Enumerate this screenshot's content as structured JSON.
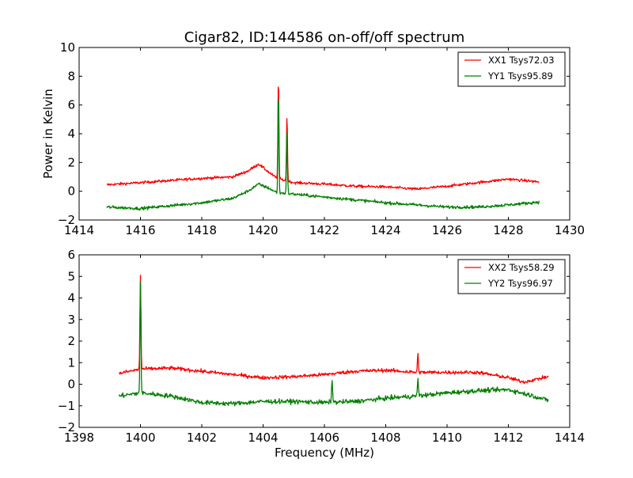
{
  "figure_title": "Cigar82, ID:144586 on-off/off spectrum",
  "chart_data": [
    {
      "type": "line",
      "title": "Cigar82, ID:144586 on-off/off spectrum",
      "xlabel": "",
      "ylabel": "Power in Kelvin",
      "xlim": [
        1414,
        1430
      ],
      "ylim": [
        -2,
        10
      ],
      "xticks": [
        "1414",
        "1416",
        "1418",
        "1420",
        "1422",
        "1424",
        "1426",
        "1428",
        "1430"
      ],
      "yticks": [
        "−2",
        "0",
        "2",
        "4",
        "6",
        "8",
        "10"
      ],
      "xtick_values": [
        1414,
        1416,
        1418,
        1420,
        1422,
        1424,
        1426,
        1428,
        1430
      ],
      "ytick_values": [
        -2,
        0,
        2,
        4,
        6,
        8,
        10
      ],
      "grid": false,
      "legend_position": "top-right",
      "x_range": [
        1414.9,
        1429.0
      ],
      "series": [
        {
          "name": "XX1 Tsys72.03",
          "color": "#ff0000",
          "baseline": [
            [
              1414.9,
              0.45
            ],
            [
              1416,
              0.6
            ],
            [
              1417,
              0.75
            ],
            [
              1418,
              0.9
            ],
            [
              1419,
              1.0
            ],
            [
              1419.5,
              1.4
            ],
            [
              1419.85,
              1.9
            ],
            [
              1420.2,
              1.3
            ],
            [
              1420.45,
              0.9
            ],
            [
              1421,
              0.6
            ],
            [
              1422,
              0.5
            ],
            [
              1423,
              0.35
            ],
            [
              1424,
              0.3
            ],
            [
              1425,
              0.15
            ],
            [
              1426,
              0.35
            ],
            [
              1427,
              0.6
            ],
            [
              1428,
              0.85
            ],
            [
              1429.0,
              0.65
            ]
          ],
          "peaks": [
            {
              "x": 1420.5,
              "y": 8.0
            },
            {
              "x": 1420.78,
              "y": 5.3
            }
          ],
          "noise": 0.09
        },
        {
          "name": "YY1 Tsys95.89",
          "color": "#008000",
          "baseline": [
            [
              1414.9,
              -1.1
            ],
            [
              1416,
              -1.2
            ],
            [
              1417,
              -1.0
            ],
            [
              1418,
              -0.8
            ],
            [
              1419,
              -0.5
            ],
            [
              1419.5,
              0.0
            ],
            [
              1419.85,
              0.5
            ],
            [
              1420.2,
              0.2
            ],
            [
              1420.45,
              -0.1
            ],
            [
              1421,
              -0.2
            ],
            [
              1422,
              -0.4
            ],
            [
              1423,
              -0.6
            ],
            [
              1424,
              -0.8
            ],
            [
              1425,
              -0.95
            ],
            [
              1426,
              -1.1
            ],
            [
              1427,
              -1.1
            ],
            [
              1428,
              -0.95
            ],
            [
              1429.0,
              -0.75
            ]
          ],
          "peaks": [
            {
              "x": 1420.5,
              "y": 7.0
            },
            {
              "x": 1420.78,
              "y": 4.1
            }
          ],
          "noise": 0.1
        }
      ]
    },
    {
      "type": "line",
      "title": "",
      "xlabel": "Frequency (MHz)",
      "ylabel": "",
      "xlim": [
        1398,
        1414
      ],
      "ylim": [
        -2,
        6
      ],
      "xticks": [
        "1398",
        "1400",
        "1402",
        "1404",
        "1406",
        "1408",
        "1410",
        "1412",
        "1414"
      ],
      "yticks": [
        "−2",
        "−1",
        "0",
        "1",
        "2",
        "3",
        "4",
        "5",
        "6"
      ],
      "xtick_values": [
        1398,
        1400,
        1402,
        1404,
        1406,
        1408,
        1410,
        1412,
        1414
      ],
      "ytick_values": [
        -2,
        -1,
        0,
        1,
        2,
        3,
        4,
        5,
        6
      ],
      "grid": false,
      "legend_position": "top-right",
      "x_range": [
        1399.3,
        1413.3
      ],
      "series": [
        {
          "name": "XX2 Tsys58.29",
          "color": "#ff0000",
          "baseline": [
            [
              1399.3,
              0.5
            ],
            [
              1400,
              0.7
            ],
            [
              1401,
              0.75
            ],
            [
              1402,
              0.6
            ],
            [
              1403,
              0.45
            ],
            [
              1404,
              0.3
            ],
            [
              1405,
              0.35
            ],
            [
              1406,
              0.45
            ],
            [
              1407,
              0.6
            ],
            [
              1408,
              0.65
            ],
            [
              1409,
              0.55
            ],
            [
              1410,
              0.55
            ],
            [
              1411,
              0.55
            ],
            [
              1412,
              0.3
            ],
            [
              1412.5,
              0.1
            ],
            [
              1413.3,
              0.35
            ]
          ],
          "peaks": [
            {
              "x": 1400.0,
              "y": 5.1
            },
            {
              "x": 1409.05,
              "y": 1.4
            }
          ],
          "noise": 0.08
        },
        {
          "name": "YY2 Tsys96.97",
          "color": "#008000",
          "baseline": [
            [
              1399.3,
              -0.55
            ],
            [
              1400,
              -0.4
            ],
            [
              1401,
              -0.55
            ],
            [
              1402,
              -0.85
            ],
            [
              1403,
              -0.9
            ],
            [
              1404,
              -0.8
            ],
            [
              1405,
              -0.8
            ],
            [
              1406,
              -0.85
            ],
            [
              1407,
              -0.8
            ],
            [
              1408,
              -0.65
            ],
            [
              1409,
              -0.55
            ],
            [
              1410,
              -0.4
            ],
            [
              1411,
              -0.3
            ],
            [
              1412,
              -0.25
            ],
            [
              1412.7,
              -0.5
            ],
            [
              1413.3,
              -0.75
            ]
          ],
          "peaks": [
            {
              "x": 1400.0,
              "y": 4.8
            },
            {
              "x": 1406.25,
              "y": 0.3
            },
            {
              "x": 1409.05,
              "y": 0.3
            }
          ],
          "noise": 0.1
        }
      ]
    }
  ]
}
